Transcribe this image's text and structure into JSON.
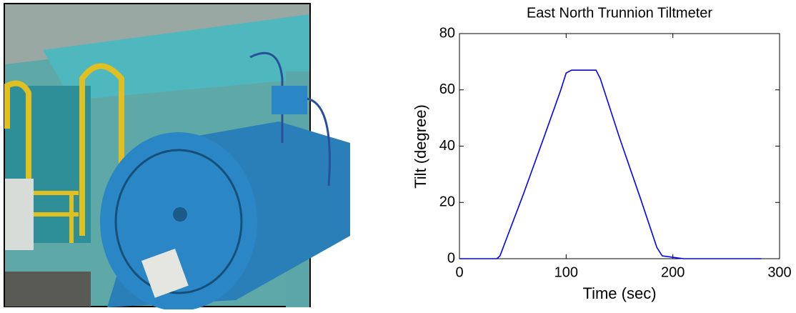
{
  "chart_data": {
    "type": "line",
    "title": "East North Trunnion Tiltmeter",
    "x_label": "Time (sec)",
    "y_label": "Tilt (degree)",
    "x": [
      0,
      35,
      38,
      45,
      60,
      80,
      95,
      100,
      105,
      128,
      132,
      150,
      170,
      185,
      190,
      200,
      210,
      283
    ],
    "series": [
      {
        "color": "#0000ff",
        "values": [
          0,
          0,
          1,
          8,
          23,
          44,
          60,
          66,
          67,
          67,
          64,
          43,
          21,
          4,
          1,
          0.5,
          0,
          0
        ]
      }
    ],
    "xlim": [
      0,
      300
    ],
    "xticks": [
      0,
      100,
      200,
      300
    ],
    "ylim": [
      0,
      80
    ],
    "yticks": [
      0,
      20,
      40,
      60,
      80
    ]
  }
}
